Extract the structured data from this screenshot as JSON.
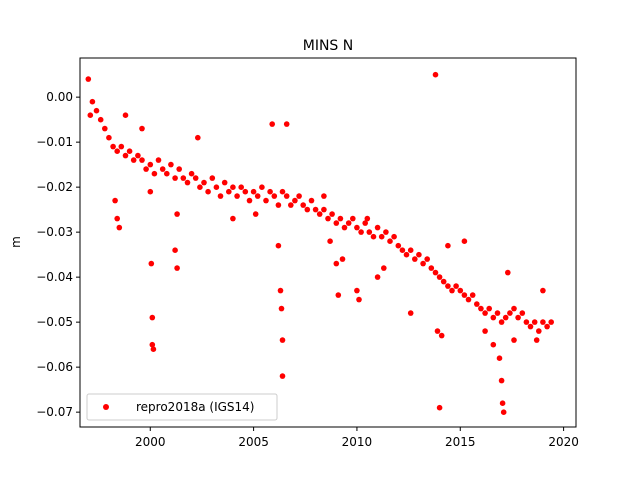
{
  "chart_data": {
    "type": "scatter",
    "title": "MINS N",
    "xlabel": "",
    "ylabel": "m",
    "xlim": [
      1996.6,
      2020.6
    ],
    "ylim": [
      -0.0733,
      0.0087
    ],
    "xticks": [
      2000,
      2005,
      2010,
      2015,
      2020
    ],
    "xtick_labels": [
      "2000",
      "2005",
      "2010",
      "2015",
      "2020"
    ],
    "yticks": [
      0.0,
      -0.01,
      -0.02,
      -0.03,
      -0.04,
      -0.05,
      -0.06,
      -0.07
    ],
    "ytick_labels": [
      "0.00",
      "−0.01",
      "−0.02",
      "−0.03",
      "−0.04",
      "−0.05",
      "−0.06",
      "−0.07"
    ],
    "grid": false,
    "legend_position": "lower-left",
    "series": [
      {
        "name": "repro2018a (IGS14)",
        "color": "#ff0000",
        "marker": "circle",
        "points": [
          [
            1997.0,
            0.004
          ],
          [
            1997.1,
            -0.004
          ],
          [
            1997.2,
            -0.001
          ],
          [
            1997.4,
            -0.003
          ],
          [
            1997.6,
            -0.005
          ],
          [
            1997.8,
            -0.007
          ],
          [
            1998.0,
            -0.009
          ],
          [
            1998.2,
            -0.011
          ],
          [
            1998.4,
            -0.012
          ],
          [
            1998.6,
            -0.011
          ],
          [
            1998.8,
            -0.013
          ],
          [
            1999.0,
            -0.012
          ],
          [
            1999.2,
            -0.014
          ],
          [
            1999.4,
            -0.013
          ],
          [
            1999.6,
            -0.014
          ],
          [
            1999.8,
            -0.016
          ],
          [
            2000.0,
            -0.015
          ],
          [
            2000.2,
            -0.017
          ],
          [
            2000.4,
            -0.014
          ],
          [
            2000.6,
            -0.016
          ],
          [
            2000.8,
            -0.017
          ],
          [
            2001.0,
            -0.015
          ],
          [
            2001.2,
            -0.018
          ],
          [
            2001.4,
            -0.016
          ],
          [
            2001.6,
            -0.018
          ],
          [
            2001.8,
            -0.019
          ],
          [
            2002.0,
            -0.017
          ],
          [
            2002.2,
            -0.018
          ],
          [
            2002.4,
            -0.02
          ],
          [
            2002.6,
            -0.019
          ],
          [
            2002.8,
            -0.021
          ],
          [
            2003.0,
            -0.018
          ],
          [
            2003.2,
            -0.02
          ],
          [
            2003.4,
            -0.022
          ],
          [
            2003.6,
            -0.019
          ],
          [
            2003.8,
            -0.021
          ],
          [
            2004.0,
            -0.02
          ],
          [
            2004.2,
            -0.022
          ],
          [
            2004.4,
            -0.02
          ],
          [
            2004.6,
            -0.021
          ],
          [
            2004.8,
            -0.023
          ],
          [
            2005.0,
            -0.021
          ],
          [
            2005.2,
            -0.022
          ],
          [
            2005.4,
            -0.02
          ],
          [
            2005.6,
            -0.023
          ],
          [
            2005.8,
            -0.021
          ],
          [
            2006.0,
            -0.022
          ],
          [
            2006.2,
            -0.024
          ],
          [
            2006.4,
            -0.021
          ],
          [
            2006.6,
            -0.022
          ],
          [
            2006.8,
            -0.024
          ],
          [
            2007.0,
            -0.023
          ],
          [
            2007.2,
            -0.022
          ],
          [
            2007.4,
            -0.024
          ],
          [
            2007.6,
            -0.025
          ],
          [
            2007.8,
            -0.023
          ],
          [
            2008.0,
            -0.025
          ],
          [
            2008.2,
            -0.026
          ],
          [
            2008.4,
            -0.025
          ],
          [
            2008.6,
            -0.027
          ],
          [
            2008.8,
            -0.026
          ],
          [
            2009.0,
            -0.028
          ],
          [
            2009.2,
            -0.027
          ],
          [
            2009.4,
            -0.029
          ],
          [
            2009.6,
            -0.028
          ],
          [
            2009.8,
            -0.027
          ],
          [
            2010.0,
            -0.029
          ],
          [
            2010.2,
            -0.03
          ],
          [
            2010.4,
            -0.028
          ],
          [
            2010.6,
            -0.03
          ],
          [
            2010.8,
            -0.031
          ],
          [
            2011.0,
            -0.029
          ],
          [
            2011.2,
            -0.031
          ],
          [
            2011.4,
            -0.03
          ],
          [
            2011.6,
            -0.032
          ],
          [
            2011.8,
            -0.031
          ],
          [
            2012.0,
            -0.033
          ],
          [
            2012.2,
            -0.034
          ],
          [
            2012.4,
            -0.035
          ],
          [
            2012.6,
            -0.034
          ],
          [
            2012.8,
            -0.036
          ],
          [
            2013.0,
            -0.035
          ],
          [
            2013.2,
            -0.037
          ],
          [
            2013.4,
            -0.036
          ],
          [
            2013.6,
            -0.038
          ],
          [
            2013.8,
            -0.039
          ],
          [
            2014.0,
            -0.04
          ],
          [
            2014.2,
            -0.041
          ],
          [
            2014.4,
            -0.042
          ],
          [
            2014.6,
            -0.043
          ],
          [
            2014.8,
            -0.042
          ],
          [
            2015.0,
            -0.043
          ],
          [
            2015.2,
            -0.044
          ],
          [
            2015.4,
            -0.045
          ],
          [
            2015.6,
            -0.044
          ],
          [
            2015.8,
            -0.046
          ],
          [
            2016.0,
            -0.047
          ],
          [
            2016.2,
            -0.048
          ],
          [
            2016.4,
            -0.047
          ],
          [
            2016.6,
            -0.049
          ],
          [
            2016.8,
            -0.048
          ],
          [
            2017.0,
            -0.05
          ],
          [
            2017.2,
            -0.049
          ],
          [
            2017.4,
            -0.048
          ],
          [
            2017.6,
            -0.047
          ],
          [
            2017.8,
            -0.049
          ],
          [
            2018.0,
            -0.048
          ],
          [
            2018.2,
            -0.05
          ],
          [
            2018.4,
            -0.051
          ],
          [
            2018.6,
            -0.05
          ],
          [
            2018.8,
            -0.052
          ],
          [
            2019.0,
            -0.05
          ],
          [
            2019.2,
            -0.051
          ],
          [
            2019.4,
            -0.05
          ],
          [
            1998.3,
            -0.023
          ],
          [
            1998.4,
            -0.027
          ],
          [
            1998.5,
            -0.029
          ],
          [
            1998.8,
            -0.004
          ],
          [
            1999.6,
            -0.007
          ],
          [
            2000.0,
            -0.021
          ],
          [
            2000.05,
            -0.037
          ],
          [
            2000.1,
            -0.049
          ],
          [
            2000.1,
            -0.055
          ],
          [
            2000.15,
            -0.056
          ],
          [
            2001.2,
            -0.034
          ],
          [
            2001.3,
            -0.038
          ],
          [
            2001.3,
            -0.026
          ],
          [
            2002.3,
            -0.009
          ],
          [
            2004.0,
            -0.027
          ],
          [
            2005.1,
            -0.026
          ],
          [
            2005.9,
            -0.006
          ],
          [
            2006.2,
            -0.033
          ],
          [
            2006.3,
            -0.043
          ],
          [
            2006.35,
            -0.047
          ],
          [
            2006.4,
            -0.054
          ],
          [
            2006.4,
            -0.062
          ],
          [
            2006.6,
            -0.006
          ],
          [
            2008.4,
            -0.022
          ],
          [
            2008.7,
            -0.032
          ],
          [
            2009.0,
            -0.037
          ],
          [
            2009.1,
            -0.044
          ],
          [
            2009.3,
            -0.036
          ],
          [
            2010.0,
            -0.043
          ],
          [
            2010.1,
            -0.045
          ],
          [
            2010.5,
            -0.027
          ],
          [
            2011.0,
            -0.04
          ],
          [
            2011.3,
            -0.038
          ],
          [
            2012.6,
            -0.048
          ],
          [
            2013.8,
            0.005
          ],
          [
            2013.9,
            -0.052
          ],
          [
            2014.0,
            -0.069
          ],
          [
            2014.1,
            -0.053
          ],
          [
            2014.4,
            -0.033
          ],
          [
            2015.2,
            -0.032
          ],
          [
            2016.2,
            -0.052
          ],
          [
            2016.6,
            -0.055
          ],
          [
            2016.9,
            -0.058
          ],
          [
            2017.0,
            -0.063
          ],
          [
            2017.05,
            -0.068
          ],
          [
            2017.1,
            -0.07
          ],
          [
            2017.3,
            -0.039
          ],
          [
            2017.6,
            -0.054
          ],
          [
            2018.7,
            -0.054
          ],
          [
            2019.0,
            -0.043
          ]
        ]
      }
    ]
  }
}
